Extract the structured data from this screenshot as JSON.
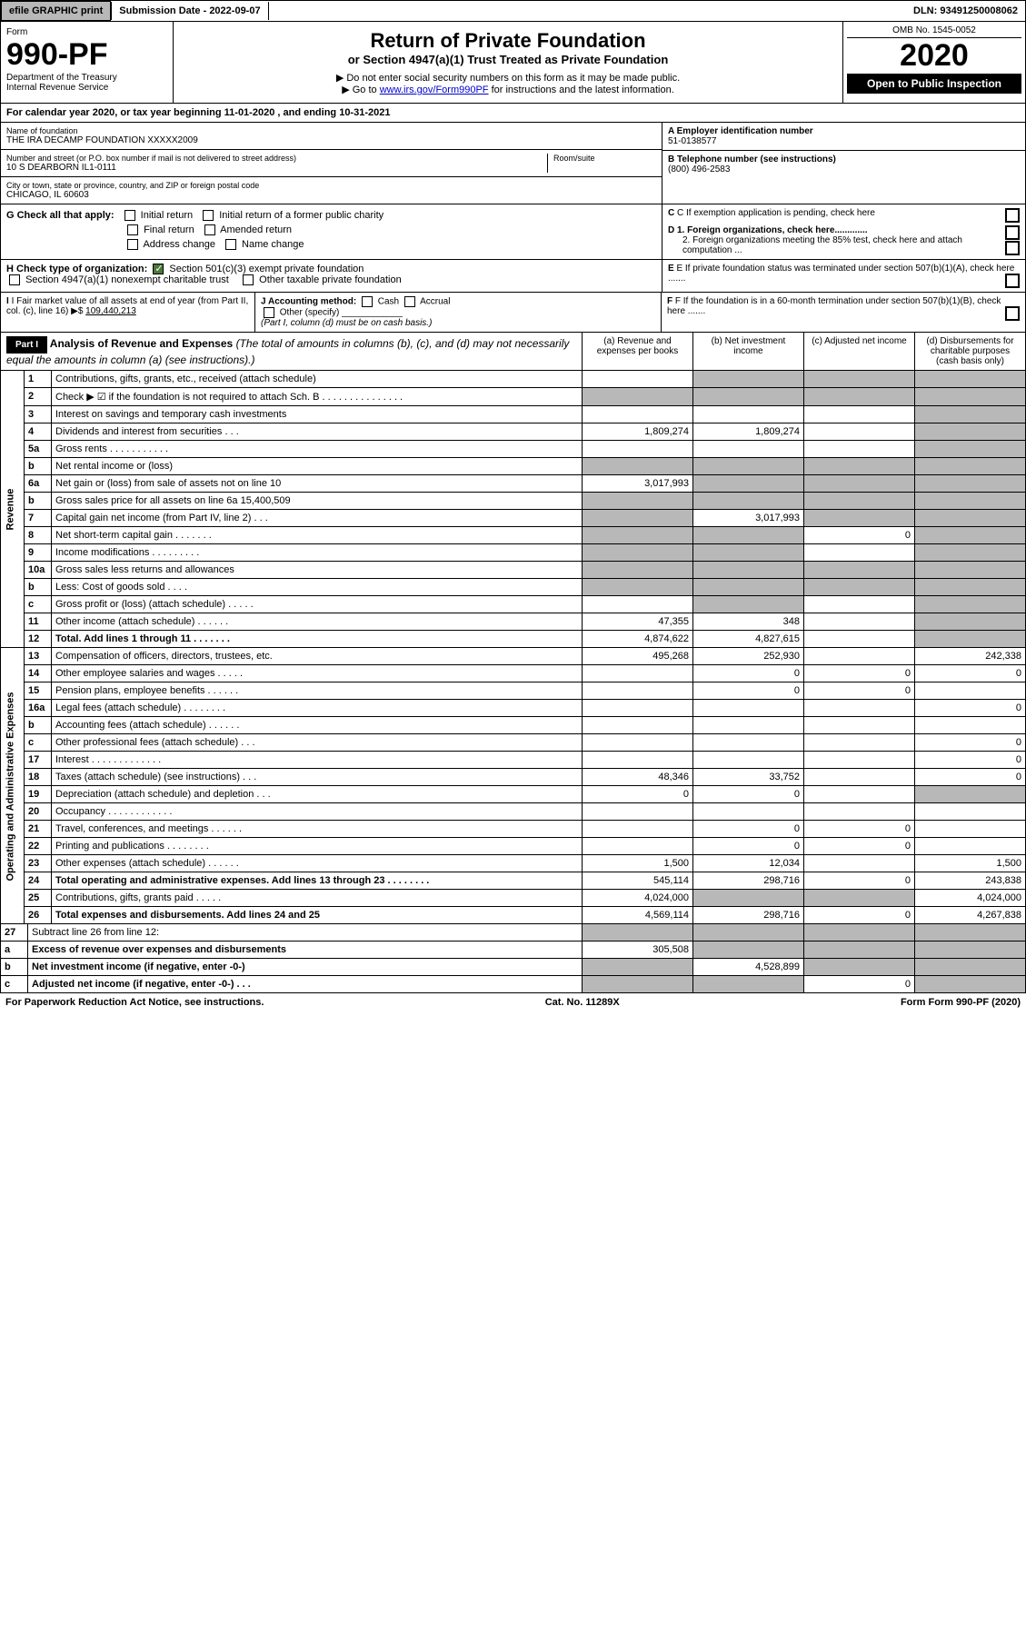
{
  "topbar": {
    "efile": "efile GRAPHIC print",
    "submission": "Submission Date - 2022-09-07",
    "dln": "DLN: 93491250008062"
  },
  "header": {
    "form_label": "Form",
    "form_number": "990-PF",
    "dept1": "Department of the Treasury",
    "dept2": "Internal Revenue Service",
    "title": "Return of Private Foundation",
    "subtitle": "or Section 4947(a)(1) Trust Treated as Private Foundation",
    "instr1": "▶ Do not enter social security numbers on this form as it may be made public.",
    "instr2": "▶ Go to ",
    "instr_link": "www.irs.gov/Form990PF",
    "instr3": " for instructions and the latest information.",
    "omb": "OMB No. 1545-0052",
    "year": "2020",
    "open": "Open to Public Inspection"
  },
  "calendar": "For calendar year 2020, or tax year beginning 11-01-2020                                    , and ending 10-31-2021",
  "info": {
    "name_label": "Name of foundation",
    "name": "THE IRA DECAMP FOUNDATION XXXXX2009",
    "addr_label": "Number and street (or P.O. box number if mail is not delivered to street address)",
    "addr": "10 S DEARBORN IL1-0111",
    "room_label": "Room/suite",
    "city_label": "City or town, state or province, country, and ZIP or foreign postal code",
    "city": "CHICAGO, IL  60603",
    "a_label": "A Employer identification number",
    "a_val": "51-0138577",
    "b_label": "B Telephone number (see instructions)",
    "b_val": "(800) 496-2583",
    "c_label": "C If exemption application is pending, check here",
    "d1": "D 1. Foreign organizations, check here.............",
    "d2": "2. Foreign organizations meeting the 85% test, check here and attach computation ...",
    "e_label": "E  If private foundation status was terminated under section 507(b)(1)(A), check here .......",
    "f_label": "F  If the foundation is in a 60-month termination under section 507(b)(1)(B), check here .......",
    "g_label": "G Check all that apply:",
    "g_opts": [
      "Initial return",
      "Initial return of a former public charity",
      "Final return",
      "Amended return",
      "Address change",
      "Name change"
    ],
    "h_label": "H Check type of organization:",
    "h_opt1": "Section 501(c)(3) exempt private foundation",
    "h_opt2": "Section 4947(a)(1) nonexempt charitable trust",
    "h_opt3": "Other taxable private foundation",
    "i_label": "I Fair market value of all assets at end of year (from Part II, col. (c), line 16) ▶$",
    "i_val": "109,440,213",
    "j_label": "J Accounting method:",
    "j_opts": [
      "Cash",
      "Accrual"
    ],
    "j_other": "Other (specify)",
    "j_note": "(Part I, column (d) must be on cash basis.)"
  },
  "part1": {
    "label": "Part I",
    "title": "Analysis of Revenue and Expenses",
    "title_note": "(The total of amounts in columns (b), (c), and (d) may not necessarily equal the amounts in column (a) (see instructions).)",
    "col_a": "(a)   Revenue and expenses per books",
    "col_b": "(b)   Net investment income",
    "col_c": "(c)   Adjusted net income",
    "col_d": "(d)   Disbursements for charitable purposes (cash basis only)"
  },
  "sections": {
    "revenue": "Revenue",
    "operating": "Operating and Administrative Expenses"
  },
  "rows": [
    {
      "n": "1",
      "d": "shade",
      "a": "",
      "b": "shade",
      "c": "shade"
    },
    {
      "n": "2",
      "d": "shade",
      "a": "shade",
      "b": "shade",
      "c": "shade",
      "bold_not": true
    },
    {
      "n": "3",
      "d": "shade",
      "a": "",
      "b": "",
      "c": ""
    },
    {
      "n": "4",
      "d": "shade",
      "a": "1,809,274",
      "b": "1,809,274",
      "c": ""
    },
    {
      "n": "5a",
      "d": "shade",
      "a": "",
      "b": "",
      "c": ""
    },
    {
      "n": "b",
      "d": "shade",
      "a": "shade",
      "b": "shade",
      "c": "shade"
    },
    {
      "n": "6a",
      "d": "shade",
      "a": "3,017,993",
      "b": "shade",
      "c": "shade"
    },
    {
      "n": "b",
      "d": "shade",
      "a": "shade",
      "b": "shade",
      "c": "shade"
    },
    {
      "n": "7",
      "d": "shade",
      "a": "shade",
      "b": "3,017,993",
      "c": "shade"
    },
    {
      "n": "8",
      "d": "shade",
      "a": "shade",
      "b": "shade",
      "c": "0"
    },
    {
      "n": "9",
      "d": "shade",
      "a": "shade",
      "b": "shade",
      "c": ""
    },
    {
      "n": "10a",
      "d": "shade",
      "a": "shade",
      "b": "shade",
      "c": "shade"
    },
    {
      "n": "b",
      "d": "shade",
      "a": "shade",
      "b": "shade",
      "c": "shade"
    },
    {
      "n": "c",
      "d": "shade",
      "a": "",
      "b": "shade",
      "c": ""
    },
    {
      "n": "11",
      "d": "shade",
      "a": "47,355",
      "b": "348",
      "c": ""
    },
    {
      "n": "12",
      "d": "shade",
      "a": "4,874,622",
      "b": "4,827,615",
      "c": "",
      "bold": true
    }
  ],
  "expense_rows": [
    {
      "n": "13",
      "d": "242,338",
      "a": "495,268",
      "b": "252,930",
      "c": ""
    },
    {
      "n": "14",
      "d": "0",
      "a": "",
      "b": "0",
      "c": "0"
    },
    {
      "n": "15",
      "d": "",
      "a": "",
      "b": "0",
      "c": "0"
    },
    {
      "n": "16a",
      "d": "0",
      "a": "",
      "b": "",
      "c": ""
    },
    {
      "n": "b",
      "d": "",
      "a": "",
      "b": "",
      "c": ""
    },
    {
      "n": "c",
      "d": "0",
      "a": "",
      "b": "",
      "c": ""
    },
    {
      "n": "17",
      "d": "0",
      "a": "",
      "b": "",
      "c": ""
    },
    {
      "n": "18",
      "d": "0",
      "a": "48,346",
      "b": "33,752",
      "c": ""
    },
    {
      "n": "19",
      "d": "shade",
      "a": "0",
      "b": "0",
      "c": ""
    },
    {
      "n": "20",
      "d": "",
      "a": "",
      "b": "",
      "c": ""
    },
    {
      "n": "21",
      "d": "",
      "a": "",
      "b": "0",
      "c": "0"
    },
    {
      "n": "22",
      "d": "",
      "a": "",
      "b": "0",
      "c": "0"
    },
    {
      "n": "23",
      "d": "1,500",
      "a": "1,500",
      "b": "12,034",
      "c": ""
    },
    {
      "n": "24",
      "d": "243,838",
      "a": "545,114",
      "b": "298,716",
      "c": "0",
      "bold": true
    },
    {
      "n": "25",
      "d": "4,024,000",
      "a": "4,024,000",
      "b": "shade",
      "c": "shade"
    },
    {
      "n": "26",
      "d": "4,267,838",
      "a": "4,569,114",
      "b": "298,716",
      "c": "0",
      "bold": true
    }
  ],
  "bottom_rows": [
    {
      "n": "27",
      "d": "shade",
      "a": "shade",
      "b": "shade",
      "c": "shade"
    },
    {
      "n": "a",
      "d": "shade",
      "a": "305,508",
      "b": "shade",
      "c": "shade",
      "bold": true
    },
    {
      "n": "b",
      "d": "shade",
      "a": "shade",
      "b": "4,528,899",
      "c": "shade",
      "bold": true
    },
    {
      "n": "c",
      "d": "shade",
      "a": "shade",
      "b": "shade",
      "c": "0",
      "bold": true
    }
  ],
  "footer": {
    "left": "For Paperwork Reduction Act Notice, see instructions.",
    "mid": "Cat. No. 11289X",
    "right": "Form 990-PF (2020)"
  }
}
